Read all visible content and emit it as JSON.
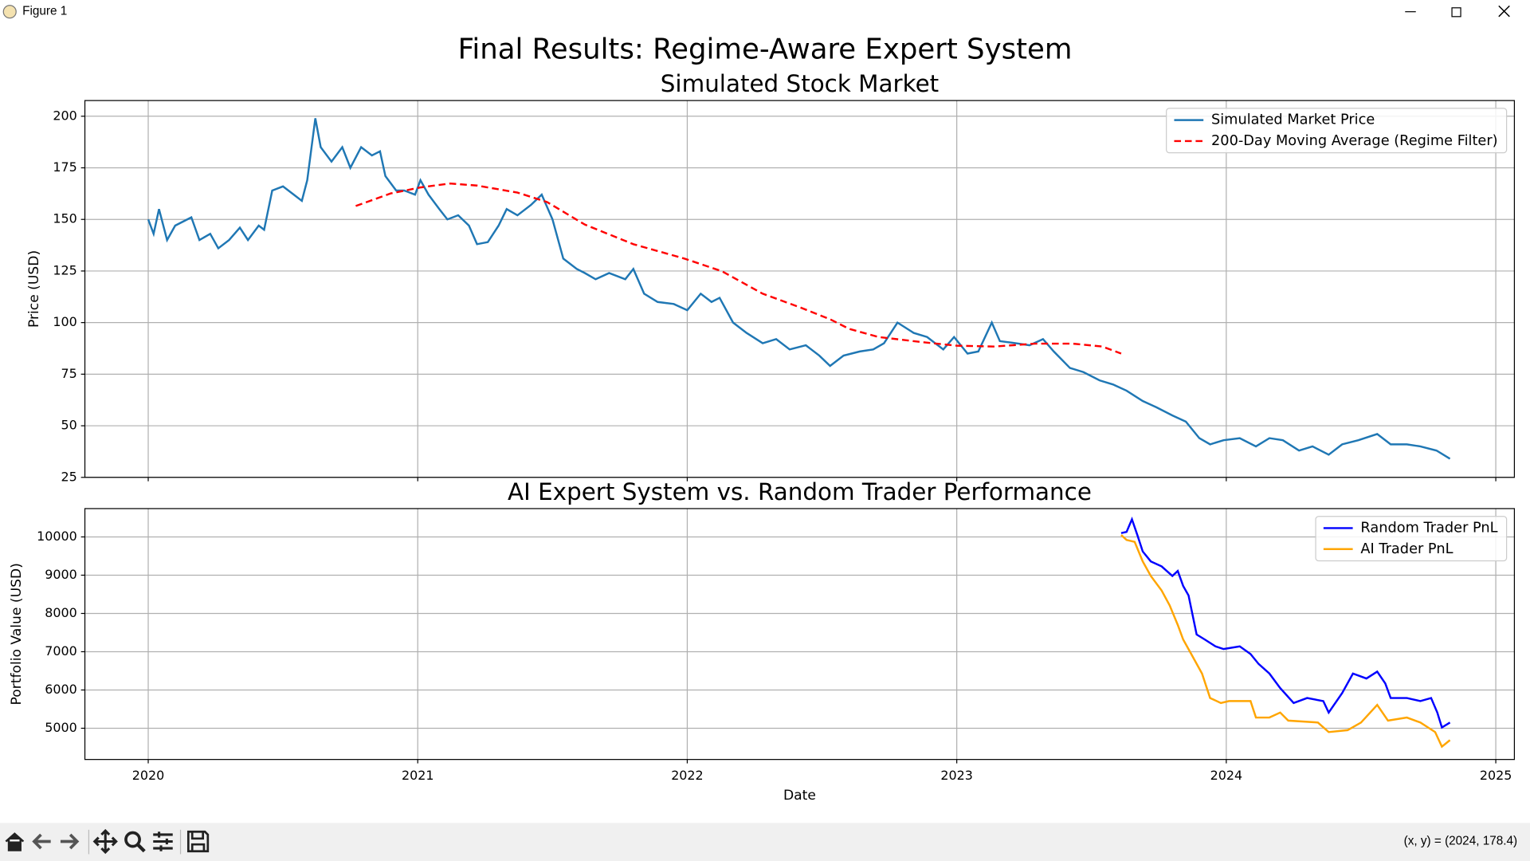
{
  "window_title": "Figure 1",
  "figure_title": "Final Results: Regime-Aware Expert System",
  "status": "(x, y) = (2024, 178.4)",
  "chart_data": [
    {
      "type": "line",
      "title": "Simulated Stock Market",
      "ylabel": "Price (USD)",
      "xlim": [
        2019.765,
        2025.069
      ],
      "xticks": [
        2020,
        2021,
        2022,
        2023,
        2024,
        2025
      ],
      "show_xticklabels": false,
      "ylim": [
        25,
        207.6
      ],
      "yticks": [
        25,
        50,
        75,
        100,
        125,
        150,
        175,
        200
      ],
      "grid": true,
      "legend": "upper right",
      "series": [
        {
          "name": "Simulated Market Price",
          "color": "#1f77b4",
          "linestyle": "solid",
          "x": [
            2020.0,
            2020.02,
            2020.04,
            2020.07,
            2020.1,
            2020.16,
            2020.19,
            2020.23,
            2020.26,
            2020.3,
            2020.34,
            2020.37,
            2020.41,
            2020.43,
            2020.46,
            2020.5,
            2020.54,
            2020.57,
            2020.59,
            2020.62,
            2020.64,
            2020.68,
            2020.72,
            2020.75,
            2020.79,
            2020.83,
            2020.86,
            2020.88,
            2020.92,
            2020.95,
            2020.99,
            2021.01,
            2021.04,
            2021.08,
            2021.11,
            2021.15,
            2021.19,
            2021.22,
            2021.26,
            2021.3,
            2021.33,
            2021.37,
            2021.42,
            2021.46,
            2021.5,
            2021.54,
            2021.59,
            2021.62,
            2021.66,
            2021.71,
            2021.77,
            2021.8,
            2021.84,
            2021.89,
            2021.95,
            2022.0,
            2022.05,
            2022.09,
            2022.12,
            2022.17,
            2022.22,
            2022.28,
            2022.33,
            2022.38,
            2022.44,
            2022.49,
            2022.53,
            2022.58,
            2022.64,
            2022.69,
            2022.73,
            2022.78,
            2022.84,
            2022.89,
            2022.95,
            2022.99,
            2023.04,
            2023.08,
            2023.13,
            2023.16,
            2023.22,
            2023.27,
            2023.32,
            2023.36,
            2023.42,
            2023.47,
            2023.53,
            2023.58,
            2023.63,
            2023.69,
            2023.74,
            2023.8,
            2023.85,
            2023.9,
            2023.94,
            2023.99,
            2024.05,
            2024.11,
            2024.16,
            2024.21,
            2024.27,
            2024.32,
            2024.38,
            2024.43,
            2024.49,
            2024.56,
            2024.61,
            2024.67,
            2024.72,
            2024.78,
            2024.83
          ],
          "values": [
            150,
            143,
            155,
            140,
            147,
            151,
            140,
            143,
            136,
            140,
            146,
            140,
            147,
            145,
            164,
            166,
            162,
            159,
            169,
            199,
            185,
            178,
            185,
            175,
            185,
            181,
            183,
            171,
            164,
            164,
            162,
            169,
            162,
            155,
            150,
            152,
            147,
            138,
            139,
            147,
            155,
            152,
            157,
            162,
            150,
            131,
            126,
            124,
            121,
            124,
            121,
            126,
            114,
            110,
            109,
            106,
            114,
            110,
            112,
            100,
            95,
            90,
            92,
            87,
            89,
            84,
            79,
            84,
            86,
            87,
            90,
            100,
            95,
            93,
            87,
            93,
            85,
            86,
            100,
            91,
            90,
            89,
            92,
            86,
            78,
            76,
            72,
            70,
            67,
            62,
            59,
            55,
            52,
            44,
            41,
            43,
            44,
            40,
            44,
            43,
            38,
            40,
            36,
            41,
            43,
            46,
            41,
            41,
            40,
            38,
            34
          ]
        },
        {
          "name": "200-Day Moving Average (Regime Filter)",
          "color": "#ff0000",
          "linestyle": "dashed",
          "x": [
            2020.77,
            2020.9,
            2021.01,
            2021.12,
            2021.22,
            2021.37,
            2021.48,
            2021.62,
            2021.8,
            2021.99,
            2022.13,
            2022.28,
            2022.42,
            2022.53,
            2022.6,
            2022.71,
            2022.86,
            2023.0,
            2023.14,
            2023.29,
            2023.43,
            2023.54,
            2023.61
          ],
          "values": [
            156.5,
            162.6,
            165.5,
            167.4,
            166.4,
            163,
            158.4,
            147.5,
            138,
            131,
            124.8,
            114,
            107.3,
            101.6,
            97,
            93,
            90.7,
            88.8,
            88.4,
            89.8,
            89.8,
            88.4,
            85
          ]
        }
      ]
    },
    {
      "type": "line",
      "title": "AI Expert System vs. Random Trader Performance",
      "ylabel": "Portfolio Value (USD)",
      "xlabel": "Date",
      "xlim": [
        2019.765,
        2025.069
      ],
      "xticks": [
        2020,
        2021,
        2022,
        2023,
        2024,
        2025
      ],
      "show_xticklabels": true,
      "ylim": [
        4184,
        10740
      ],
      "yticks": [
        5000,
        6000,
        7000,
        8000,
        9000,
        10000
      ],
      "grid": true,
      "legend": "upper right",
      "series": [
        {
          "name": "Random Trader PnL",
          "color": "#0000ff",
          "linestyle": "solid",
          "x": [
            2023.61,
            2023.63,
            2023.65,
            2023.67,
            2023.69,
            2023.72,
            2023.76,
            2023.8,
            2023.82,
            2023.84,
            2023.86,
            2023.89,
            2023.92,
            2023.96,
            2023.99,
            2024.05,
            2024.09,
            2024.12,
            2024.16,
            2024.2,
            2024.25,
            2024.3,
            2024.36,
            2024.38,
            2024.43,
            2024.47,
            2024.52,
            2024.56,
            2024.59,
            2024.61,
            2024.67,
            2024.72,
            2024.76,
            2024.783,
            2024.8,
            2024.83
          ],
          "values": [
            10100,
            10130,
            10460,
            10050,
            9620,
            9360,
            9230,
            8980,
            9110,
            8720,
            8470,
            7450,
            7320,
            7140,
            7070,
            7140,
            6940,
            6680,
            6430,
            6050,
            5660,
            5790,
            5710,
            5410,
            5920,
            6430,
            6300,
            6480,
            6170,
            5790,
            5790,
            5710,
            5790,
            5410,
            5020,
            5150
          ]
        },
        {
          "name": "AI Trader PnL",
          "color": "#ffa500",
          "linestyle": "solid",
          "x": [
            2023.61,
            2023.63,
            2023.66,
            2023.69,
            2023.72,
            2023.76,
            2023.79,
            2023.82,
            2023.84,
            2023.87,
            2023.91,
            2023.94,
            2023.98,
            2024.01,
            2024.09,
            2024.11,
            2024.16,
            2024.2,
            2024.23,
            2024.34,
            2024.38,
            2024.45,
            2024.5,
            2024.56,
            2024.6,
            2024.67,
            2024.72,
            2024.775,
            2024.8,
            2024.83
          ],
          "values": [
            10050,
            9920,
            9870,
            9360,
            8980,
            8600,
            8210,
            7700,
            7320,
            6940,
            6430,
            5790,
            5660,
            5710,
            5710,
            5280,
            5280,
            5410,
            5200,
            5150,
            4900,
            4950,
            5150,
            5610,
            5200,
            5280,
            5150,
            4900,
            4520,
            4690
          ]
        }
      ]
    }
  ]
}
